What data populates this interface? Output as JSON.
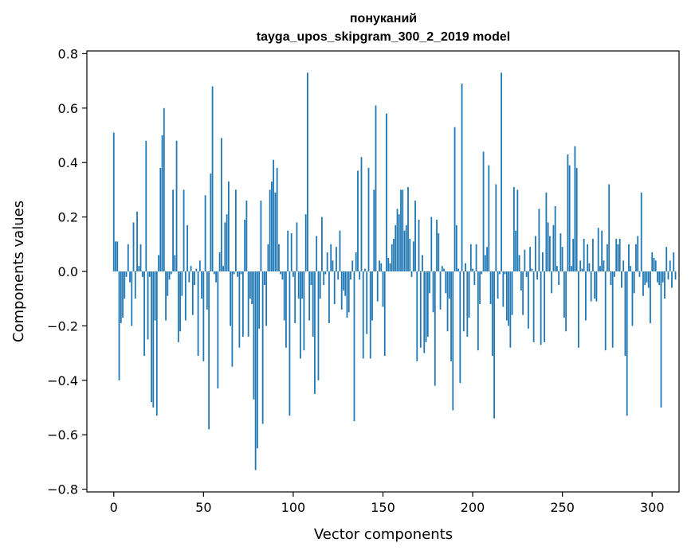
{
  "chart_data": {
    "type": "bar",
    "title": "понуканий",
    "subtitle": "tayga_upos_skipgram_300_2_2019 model",
    "xlabel": "Vector components",
    "ylabel": "Components values",
    "xlim": [
      -15,
      315
    ],
    "ylim": [
      -0.81,
      0.81
    ],
    "x_ticks": [
      0,
      50,
      100,
      150,
      200,
      250,
      300
    ],
    "y_ticks": [
      -0.8,
      -0.6,
      -0.4,
      -0.2,
      0.0,
      0.2,
      0.4,
      0.6,
      0.8
    ],
    "y_tick_labels": [
      "−0.8",
      "−0.6",
      "−0.4",
      "−0.2",
      "0.0",
      "0.2",
      "0.4",
      "0.6",
      "0.8"
    ],
    "bar_color": "#1f77b4",
    "values": [
      0.51,
      0.11,
      0.11,
      -0.4,
      -0.19,
      -0.17,
      -0.1,
      -0.02,
      0.1,
      -0.04,
      -0.2,
      0.18,
      -0.1,
      0.22,
      0.02,
      0.1,
      -0.02,
      -0.31,
      0.48,
      -0.25,
      -0.02,
      -0.48,
      -0.5,
      -0.18,
      -0.53,
      0.06,
      0.38,
      0.5,
      0.6,
      -0.18,
      -0.09,
      -0.03,
      -0.01,
      0.3,
      0.06,
      0.48,
      -0.26,
      -0.22,
      -0.09,
      0.3,
      -0.18,
      0.17,
      -0.04,
      0.02,
      -0.16,
      -0.05,
      0.01,
      -0.31,
      0.04,
      -0.1,
      -0.33,
      0.28,
      -0.14,
      -0.58,
      0.36,
      0.68,
      -0.01,
      -0.04,
      -0.43,
      0.07,
      0.49,
      0.02,
      0.18,
      0.21,
      0.33,
      -0.2,
      -0.35,
      -0.01,
      0.3,
      -0.02,
      -0.28,
      -0.01,
      -0.24,
      0.19,
      0.26,
      -0.24,
      -0.1,
      -0.12,
      -0.47,
      -0.73,
      -0.65,
      -0.21,
      0.26,
      -0.56,
      -0.05,
      -0.2,
      0.1,
      0.3,
      0.33,
      0.41,
      0.29,
      0.38,
      0.1,
      -0.01,
      -0.03,
      -0.18,
      -0.28,
      0.15,
      -0.53,
      0.14,
      -0.02,
      -0.19,
      0.18,
      -0.1,
      -0.32,
      -0.1,
      -0.29,
      0.21,
      0.73,
      -0.18,
      -0.05,
      -0.24,
      -0.45,
      0.13,
      -0.4,
      -0.1,
      0.2,
      -0.05,
      -0.01,
      0.07,
      -0.19,
      0.1,
      0.04,
      -0.12,
      0.09,
      -0.03,
      0.15,
      -0.14,
      -0.07,
      -0.09,
      -0.17,
      -0.15,
      -0.03,
      0.04,
      -0.55,
      0.07,
      0.37,
      -0.03,
      0.42,
      -0.32,
      0.01,
      -0.23,
      0.38,
      -0.32,
      -0.18,
      0.3,
      0.61,
      -0.11,
      0.04,
      0.03,
      -0.13,
      -0.31,
      0.58,
      0.05,
      0.03,
      0.1,
      0.12,
      0.17,
      0.23,
      0.21,
      0.3,
      0.3,
      0.15,
      0.17,
      0.31,
      0.12,
      -0.02,
      0.11,
      0.26,
      -0.33,
      0.19,
      -0.28,
      0.06,
      -0.3,
      -0.26,
      -0.24,
      -0.08,
      0.2,
      -0.15,
      -0.42,
      0.19,
      0.14,
      -0.14,
      0.02,
      0.01,
      -0.08,
      -0.22,
      -0.1,
      -0.33,
      -0.51,
      0.53,
      0.17,
      0.01,
      -0.41,
      0.69,
      -0.22,
      0.03,
      -0.24,
      -0.17,
      0.1,
      0.01,
      -0.05,
      0.1,
      -0.29,
      -0.12,
      -0.01,
      0.44,
      0.06,
      0.09,
      0.39,
      -0.12,
      -0.31,
      -0.54,
      0.32,
      -0.1,
      -0.01,
      0.73,
      -0.13,
      -0.01,
      -0.18,
      -0.2,
      -0.28,
      -0.16,
      0.31,
      0.15,
      0.3,
      0.06,
      -0.07,
      -0.16,
      0.08,
      -0.02,
      -0.21,
      0.09,
      0.01,
      -0.26,
      0.13,
      -0.03,
      0.23,
      -0.27,
      0.07,
      -0.26,
      0.29,
      0.18,
      0.13,
      -0.08,
      0.17,
      0.24,
      0.02,
      -0.05,
      0.14,
      0.09,
      -0.17,
      -0.22,
      0.43,
      0.39,
      0.02,
      0.12,
      0.46,
      0.38,
      -0.28,
      0.04,
      0.01,
      0.12,
      -0.18,
      0.1,
      0.03,
      -0.11,
      0.12,
      -0.1,
      -0.11,
      0.16,
      0.02,
      0.15,
      0.04,
      -0.29,
      0.1,
      0.32,
      -0.05,
      -0.28,
      -0.02,
      0.12,
      0.1,
      0.12,
      -0.06,
      0.04,
      -0.31,
      -0.53,
      0.1,
      0.02,
      -0.2,
      -0.08,
      0.1,
      0.13,
      -0.02,
      0.29,
      -0.09,
      -0.05,
      -0.04,
      -0.06,
      -0.19,
      0.07,
      0.05,
      0.04,
      -0.04,
      -0.05,
      -0.5,
      -0.04,
      -0.1,
      0.09,
      -0.03,
      0.04,
      -0.06,
      0.07,
      -0.03
    ]
  }
}
